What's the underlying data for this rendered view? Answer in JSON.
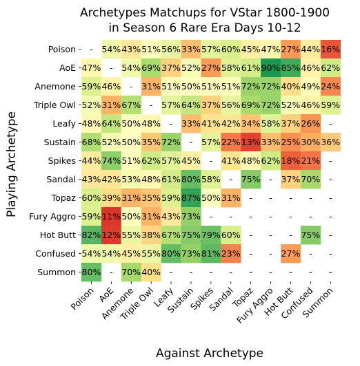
{
  "chart_data": {
    "type": "heatmap",
    "title": "Archetypes Matchups for VStar 1800-1900\nin Season 6 Rare Era Days 10-12",
    "xlabel": "Against Archetype",
    "ylabel": "Playing Archetype",
    "rows": [
      "Poison",
      "AoE",
      "Anemone",
      "Triple Owl",
      "Leafy",
      "Sustain",
      "Spikes",
      "Sandal",
      "Topaz",
      "Fury Aggro",
      "Hot Butt",
      "Confused",
      "Summon"
    ],
    "columns": [
      "Poison",
      "AoE",
      "Anemone",
      "Triple Owl",
      "Leafy",
      "Sustain",
      "Spikes",
      "Sandal",
      "Topaz",
      "Fury Aggro",
      "Hot Butt",
      "Confused",
      "Summon"
    ],
    "values": [
      [
        null,
        54,
        43,
        51,
        56,
        33,
        57,
        60,
        45,
        47,
        27,
        44,
        16
      ],
      [
        47,
        null,
        54,
        69,
        37,
        52,
        27,
        58,
        61,
        90,
        85,
        46,
        62
      ],
      [
        59,
        46,
        null,
        31,
        51,
        50,
        51,
        51,
        72,
        72,
        40,
        49,
        24
      ],
      [
        52,
        31,
        67,
        null,
        57,
        64,
        37,
        56,
        69,
        72,
        52,
        46,
        59
      ],
      [
        48,
        64,
        50,
        48,
        null,
        33,
        41,
        42,
        34,
        58,
        37,
        26,
        null
      ],
      [
        68,
        52,
        50,
        35,
        72,
        null,
        57,
        22,
        13,
        33,
        25,
        30,
        36
      ],
      [
        44,
        74,
        51,
        62,
        57,
        45,
        null,
        41,
        48,
        62,
        18,
        21,
        null
      ],
      [
        43,
        42,
        53,
        48,
        61,
        80,
        58,
        null,
        75,
        null,
        37,
        70,
        null
      ],
      [
        60,
        39,
        31,
        35,
        59,
        87,
        50,
        31,
        null,
        null,
        null,
        null,
        null
      ],
      [
        59,
        11,
        50,
        31,
        43,
        73,
        null,
        null,
        null,
        null,
        null,
        null,
        null
      ],
      [
        82,
        12,
        55,
        38,
        67,
        75,
        79,
        60,
        null,
        null,
        null,
        75,
        null
      ],
      [
        54,
        54,
        45,
        55,
        80,
        73,
        81,
        23,
        null,
        null,
        27,
        null,
        null
      ],
      [
        80,
        null,
        70,
        40,
        null,
        null,
        null,
        null,
        null,
        null,
        null,
        null,
        null
      ]
    ],
    "missing_label": "-",
    "value_suffix": "%",
    "colormap": "RdYlGn",
    "vmin": 0,
    "vmax": 100,
    "grid": false,
    "legend": "none"
  }
}
